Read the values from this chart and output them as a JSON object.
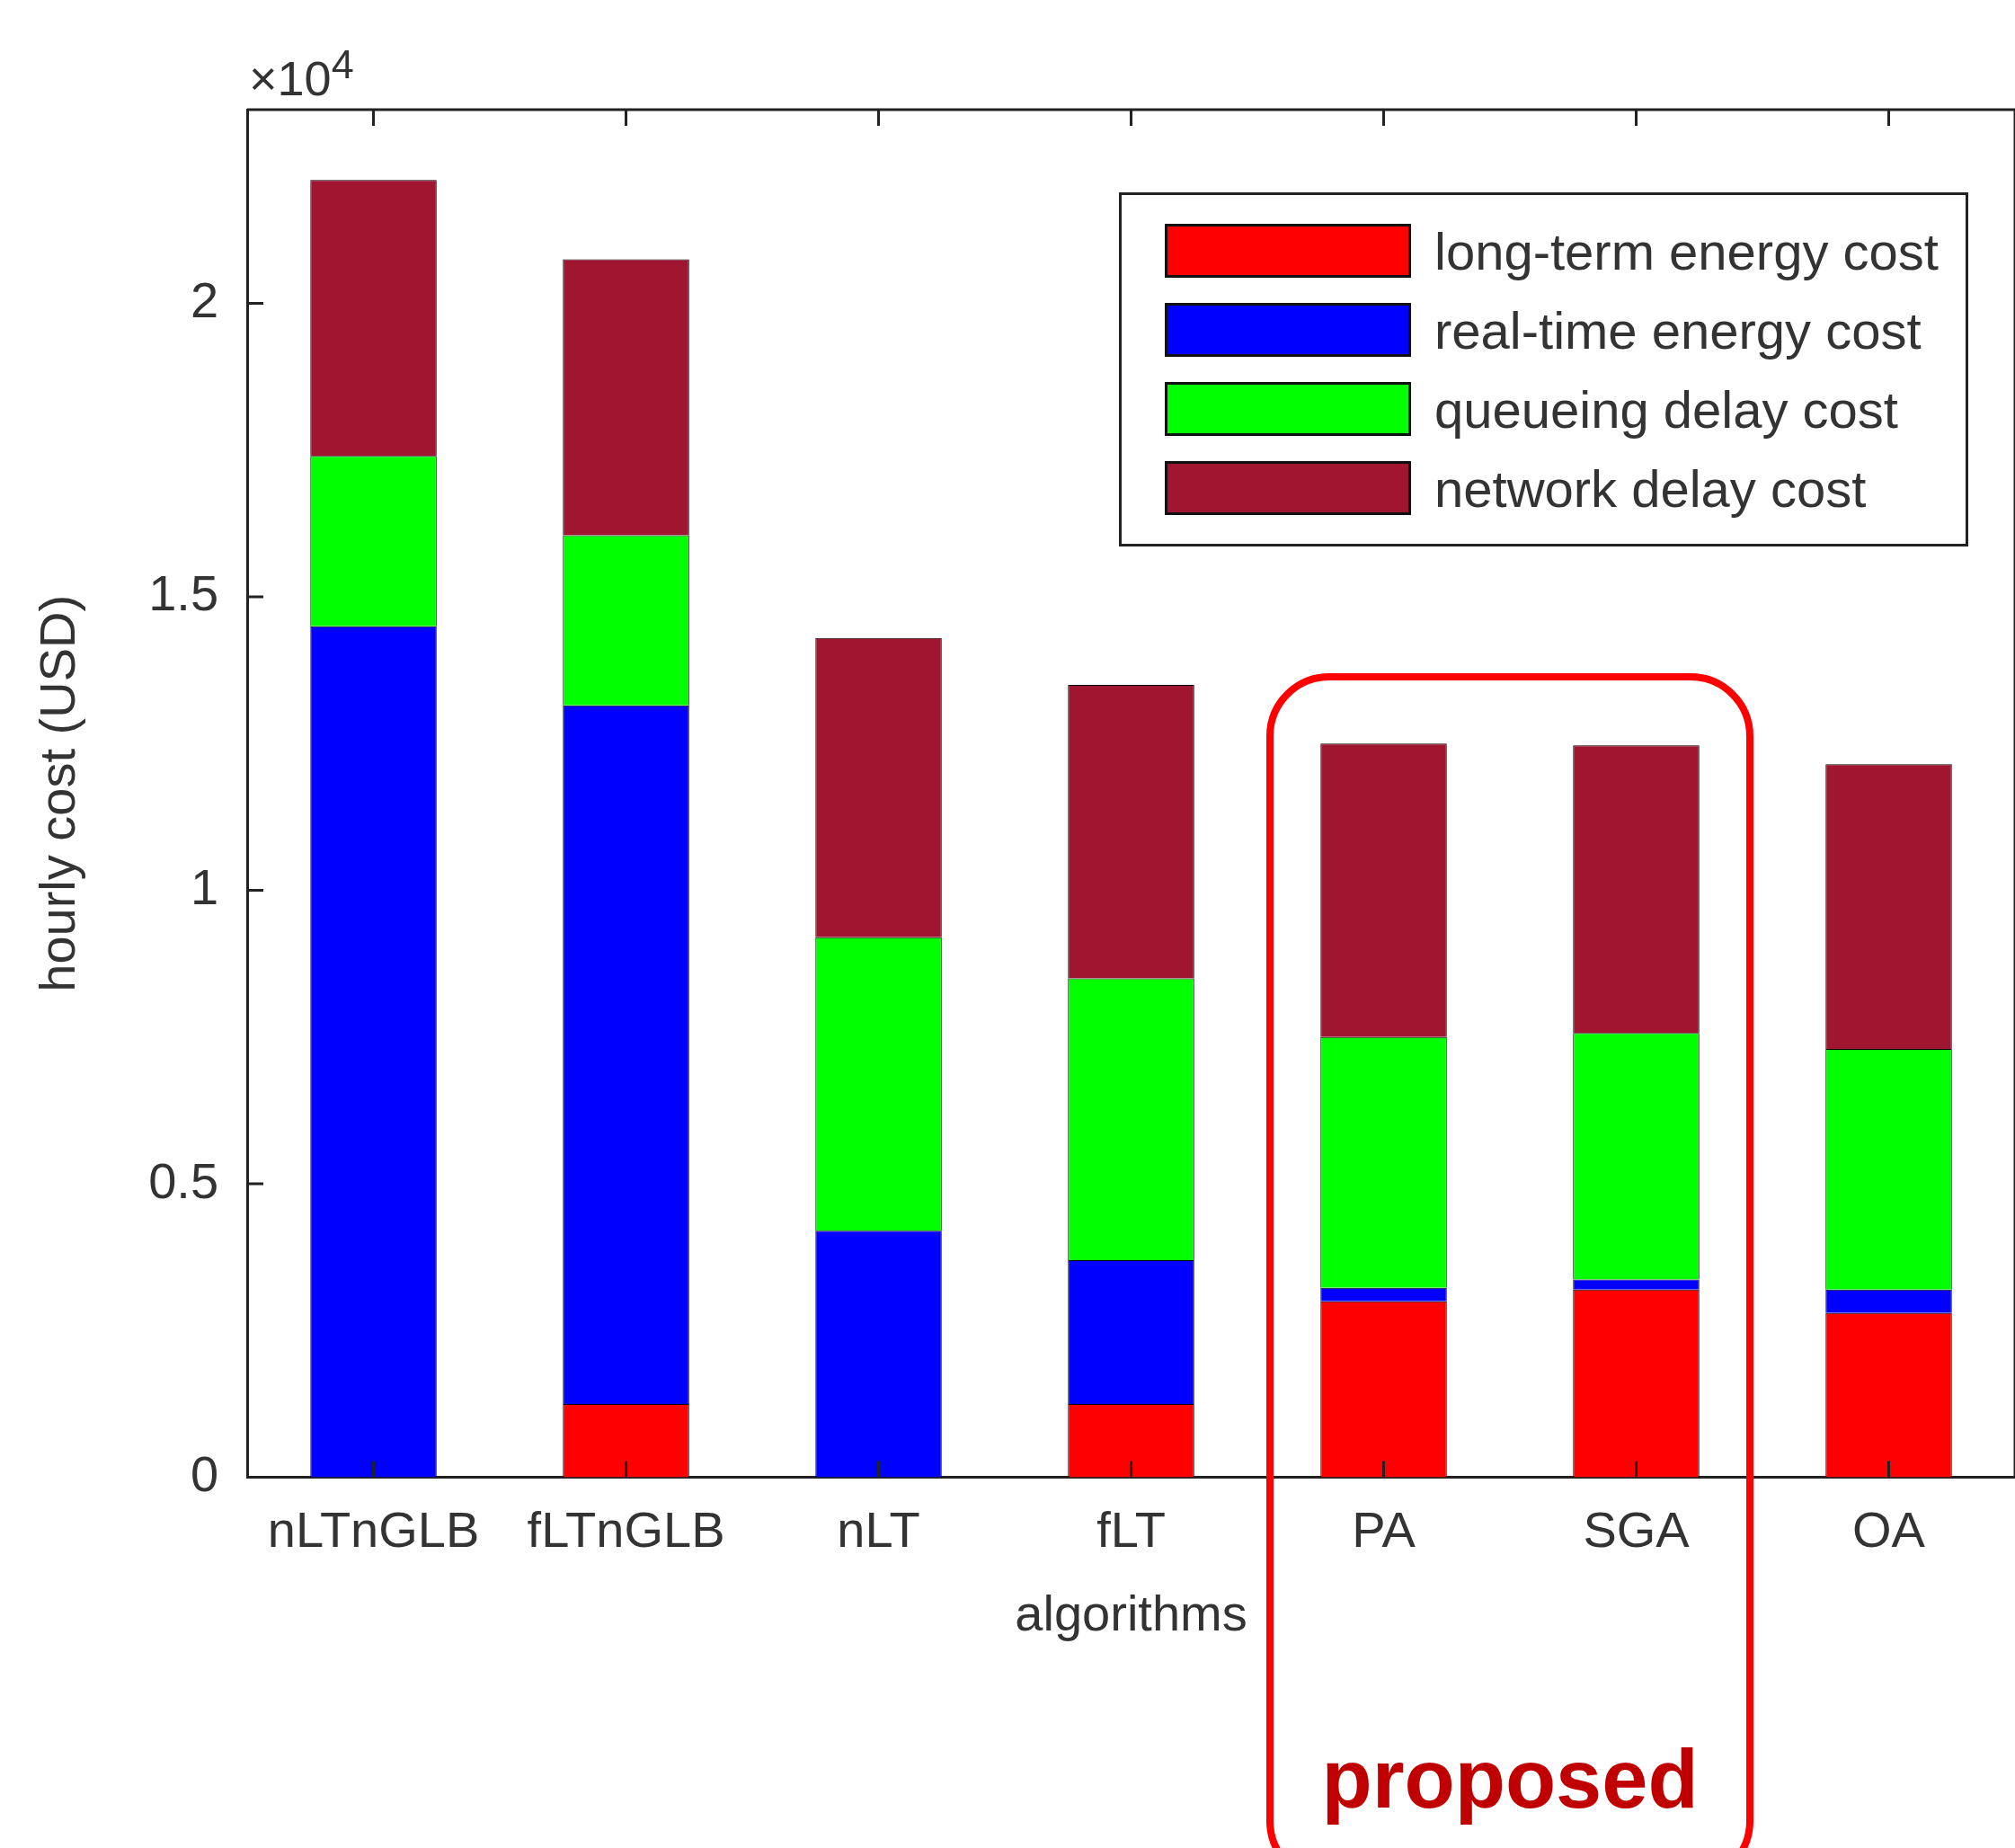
{
  "chart_data": {
    "type": "bar",
    "stacked": true,
    "xlabel": "algorithms",
    "ylabel": "hourly cost (USD)",
    "categories": [
      "nLTnGLB",
      "fLTnGLB",
      "nLT",
      "fLT",
      "PA",
      "SGA",
      "OA"
    ],
    "ylim": [
      0,
      2.33
    ],
    "yticks": [
      0,
      0.5,
      1,
      1.5,
      2
    ],
    "legend": "top right",
    "series": [
      {
        "name": "long-term energy cost",
        "color": "#ff0000",
        "values": [
          0,
          0.125,
          0,
          0.125,
          0.3,
          0.32,
          0.28
        ]
      },
      {
        "name": "real-time energy cost",
        "color": "#0000ff",
        "values": [
          1.45,
          1.19,
          0.42,
          0.245,
          0.023,
          0.017,
          0.04
        ]
      },
      {
        "name": "queueing delay cost",
        "color": "#00ff00",
        "values": [
          0.29,
          0.29,
          0.5,
          0.48,
          0.427,
          0.42,
          0.41
        ]
      },
      {
        "name": "network delay cost",
        "color": "#a01530",
        "values": [
          0.47,
          0.47,
          0.51,
          0.5,
          0.5,
          0.49,
          0.485
        ]
      }
    ],
    "annotations": [
      "×10$^{4}$",
      "proposed"
    ]
  }
}
